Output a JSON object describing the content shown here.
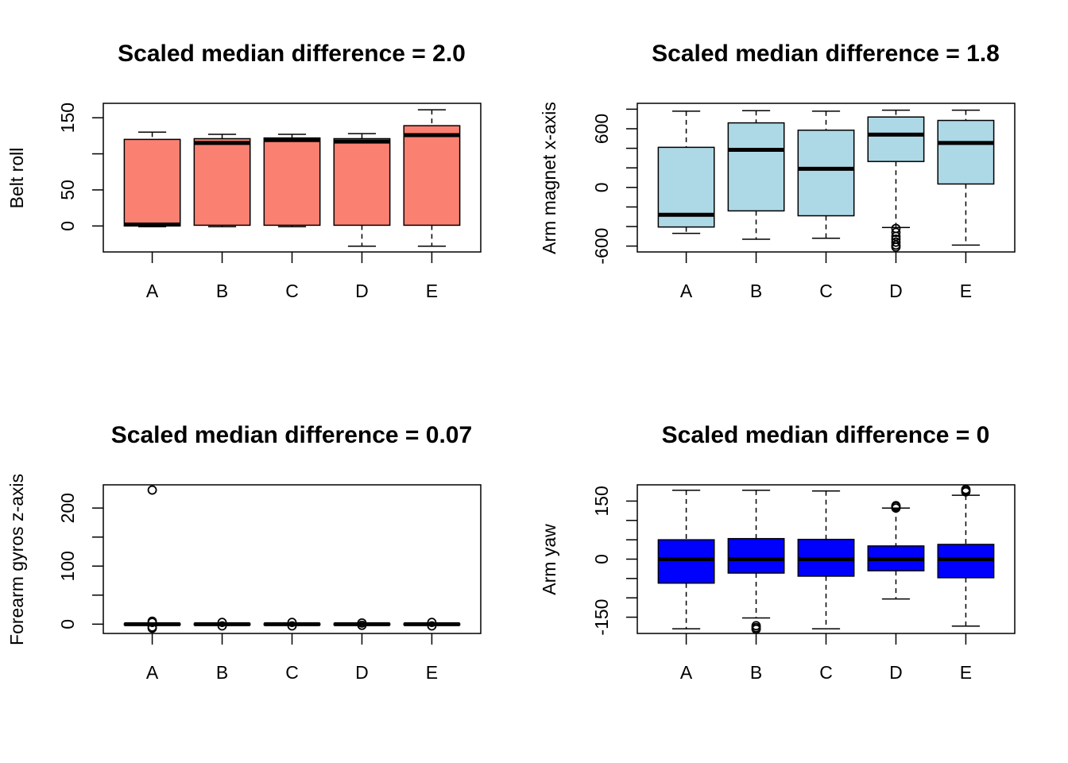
{
  "chart_data": [
    {
      "type": "boxplot",
      "title": "Scaled median difference = 2.0",
      "xlabel": "",
      "ylabel": "Belt roll",
      "ylim": [
        -36,
        170
      ],
      "yticks": [
        0,
        50,
        100,
        150
      ],
      "ytick_labels": [
        "0",
        "50",
        "",
        "150"
      ],
      "box_color": "#fa8072",
      "categories": [
        "A",
        "B",
        "C",
        "D",
        "E"
      ],
      "boxes": [
        {
          "category": "A",
          "whisker_low": -1,
          "q1": 0,
          "median": 2,
          "q3": 120,
          "whisker_high": 130,
          "outliers": []
        },
        {
          "category": "B",
          "whisker_low": -1,
          "q1": 1,
          "median": 115,
          "q3": 121,
          "whisker_high": 127,
          "outliers": []
        },
        {
          "category": "C",
          "whisker_low": -1,
          "q1": 1,
          "median": 119,
          "q3": 122,
          "whisker_high": 127,
          "outliers": []
        },
        {
          "category": "D",
          "whisker_low": -28,
          "q1": 1,
          "median": 117,
          "q3": 121,
          "whisker_high": 128,
          "outliers": []
        },
        {
          "category": "E",
          "whisker_low": -28,
          "q1": 1,
          "median": 126,
          "q3": 139,
          "whisker_high": 161,
          "outliers": []
        }
      ]
    },
    {
      "type": "boxplot",
      "title": "Scaled median difference = 1.8",
      "xlabel": "",
      "ylabel": "Arm magnet x-axis",
      "ylim": [
        -660,
        860
      ],
      "yticks": [
        -600,
        -400,
        -200,
        0,
        200,
        400,
        600,
        800
      ],
      "ytick_labels": [
        "-600",
        "",
        "",
        "0",
        "",
        "",
        "600",
        ""
      ],
      "box_color": "#add8e6",
      "categories": [
        "A",
        "B",
        "C",
        "D",
        "E"
      ],
      "boxes": [
        {
          "category": "A",
          "whisker_low": -470,
          "q1": -405,
          "median": -280,
          "q3": 410,
          "whisker_high": 780,
          "outliers": []
        },
        {
          "category": "B",
          "whisker_low": -530,
          "q1": -240,
          "median": 385,
          "q3": 660,
          "whisker_high": 785,
          "outliers": []
        },
        {
          "category": "C",
          "whisker_low": -520,
          "q1": -290,
          "median": 190,
          "q3": 585,
          "whisker_high": 780,
          "outliers": []
        },
        {
          "category": "D",
          "whisker_low": -410,
          "q1": 265,
          "median": 540,
          "q3": 720,
          "whisker_high": 790,
          "outliers": [
            -420,
            -460,
            -500,
            -530,
            -560,
            -590,
            -610
          ]
        },
        {
          "category": "E",
          "whisker_low": -590,
          "q1": 35,
          "median": 455,
          "q3": 685,
          "whisker_high": 790,
          "outliers": []
        }
      ]
    },
    {
      "type": "boxplot",
      "title": "Scaled median difference = 0.07",
      "xlabel": "",
      "ylabel": "Forearm gyros z-axis",
      "ylim": [
        -16,
        240
      ],
      "yticks": [
        0,
        50,
        100,
        150,
        200
      ],
      "ytick_labels": [
        "0",
        "",
        "100",
        "",
        "200"
      ],
      "box_color": "#ffffff",
      "categories": [
        "A",
        "B",
        "C",
        "D",
        "E"
      ],
      "boxes": [
        {
          "category": "A",
          "whisker_low": -2,
          "q1": -0.5,
          "median": 0,
          "q3": 0.5,
          "whisker_high": 2,
          "outliers": [
            -7,
            -5,
            3,
            5,
            231
          ]
        },
        {
          "category": "B",
          "whisker_low": -2,
          "q1": -0.5,
          "median": 0,
          "q3": 0.5,
          "whisker_high": 2,
          "outliers": [
            -3,
            3
          ]
        },
        {
          "category": "C",
          "whisker_low": -2,
          "q1": -0.5,
          "median": 0,
          "q3": 0.5,
          "whisker_high": 2,
          "outliers": [
            -3,
            3
          ]
        },
        {
          "category": "D",
          "whisker_low": -2,
          "q1": -0.5,
          "median": 0,
          "q3": 0.5,
          "whisker_high": 2,
          "outliers": [
            -2,
            2
          ]
        },
        {
          "category": "E",
          "whisker_low": -2,
          "q1": -0.5,
          "median": 0,
          "q3": 0.5,
          "whisker_high": 2,
          "outliers": [
            -3,
            3
          ]
        }
      ]
    },
    {
      "type": "boxplot",
      "title": "Scaled median difference = 0",
      "xlabel": "",
      "ylabel": "Arm yaw",
      "ylim": [
        -192,
        192
      ],
      "yticks": [
        -150,
        -100,
        -50,
        0,
        50,
        100,
        150
      ],
      "ytick_labels": [
        "-150",
        "",
        "",
        "0",
        "",
        "",
        "150"
      ],
      "box_color": "#0000ff",
      "categories": [
        "A",
        "B",
        "C",
        "D",
        "E"
      ],
      "boxes": [
        {
          "category": "A",
          "whisker_low": -180,
          "q1": -62,
          "median": 0,
          "q3": 50,
          "whisker_high": 178,
          "outliers": []
        },
        {
          "category": "B",
          "whisker_low": -152,
          "q1": -36,
          "median": 0,
          "q3": 53,
          "whisker_high": 178,
          "outliers": [
            -172,
            -177,
            -181
          ]
        },
        {
          "category": "C",
          "whisker_low": -180,
          "q1": -44,
          "median": 0,
          "q3": 51,
          "whisker_high": 176,
          "outliers": []
        },
        {
          "category": "D",
          "whisker_low": -103,
          "q1": -30,
          "median": 0,
          "q3": 34,
          "whisker_high": 132,
          "outliers": [
            132,
            136,
            138
          ]
        },
        {
          "category": "E",
          "whisker_low": -173,
          "q1": -48,
          "median": 0,
          "q3": 38,
          "whisker_high": 165,
          "outliers": [
            174,
            178,
            180
          ]
        }
      ]
    }
  ]
}
